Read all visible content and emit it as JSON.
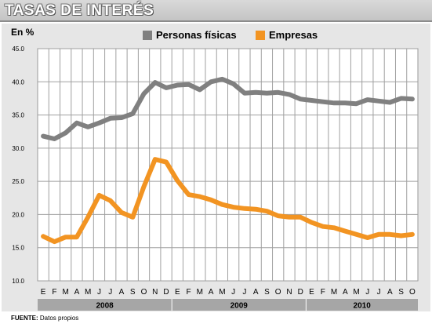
{
  "title": "TASAS DE INTERÉS",
  "unit": "En %",
  "source_label": "FUENTE:",
  "source_text": "Datos propios",
  "colors": {
    "series_1": "#808080",
    "series_2": "#f29422",
    "panel": "#e6e6e6",
    "plot": "#ffffff"
  },
  "chart_data": {
    "type": "line",
    "ylim": [
      10,
      45
    ],
    "yticks": [
      "45.0",
      "40.0",
      "35.0",
      "30.0",
      "25.0",
      "20.0",
      "15.0",
      "10.0"
    ],
    "grid": true,
    "legend_position": "top",
    "categories": [
      "E",
      "F",
      "M",
      "A",
      "M",
      "J",
      "J",
      "A",
      "S",
      "O",
      "N",
      "D",
      "E",
      "F",
      "M",
      "A",
      "M",
      "J",
      "J",
      "A",
      "S",
      "O",
      "N",
      "D",
      "E",
      "F",
      "M",
      "A",
      "M",
      "J",
      "J",
      "A",
      "S",
      "O"
    ],
    "years": [
      {
        "label": "2008",
        "months": 12
      },
      {
        "label": "2009",
        "months": 12
      },
      {
        "label": "2010",
        "months": 10
      }
    ],
    "series": [
      {
        "name": "Personas físicas",
        "values": [
          31.8,
          31.4,
          32.3,
          33.8,
          33.2,
          33.8,
          34.5,
          34.6,
          35.2,
          38.2,
          39.9,
          39.1,
          39.5,
          39.6,
          38.8,
          40.0,
          40.4,
          39.7,
          38.3,
          38.4,
          38.3,
          38.4,
          38.1,
          37.4,
          37.2,
          37.0,
          36.8,
          36.8,
          36.7,
          37.3,
          37.1,
          36.9,
          37.5,
          37.4
        ]
      },
      {
        "name": "Empresas",
        "values": [
          16.7,
          15.9,
          16.6,
          16.6,
          19.6,
          22.9,
          22.1,
          20.3,
          19.6,
          24.2,
          28.3,
          27.9,
          25.1,
          23.0,
          22.7,
          22.2,
          21.5,
          21.1,
          20.9,
          20.8,
          20.5,
          19.8,
          19.6,
          19.6,
          18.8,
          18.2,
          18.0,
          17.5,
          17.0,
          16.5,
          17.0,
          17.0,
          16.8,
          17.0
        ]
      }
    ]
  }
}
